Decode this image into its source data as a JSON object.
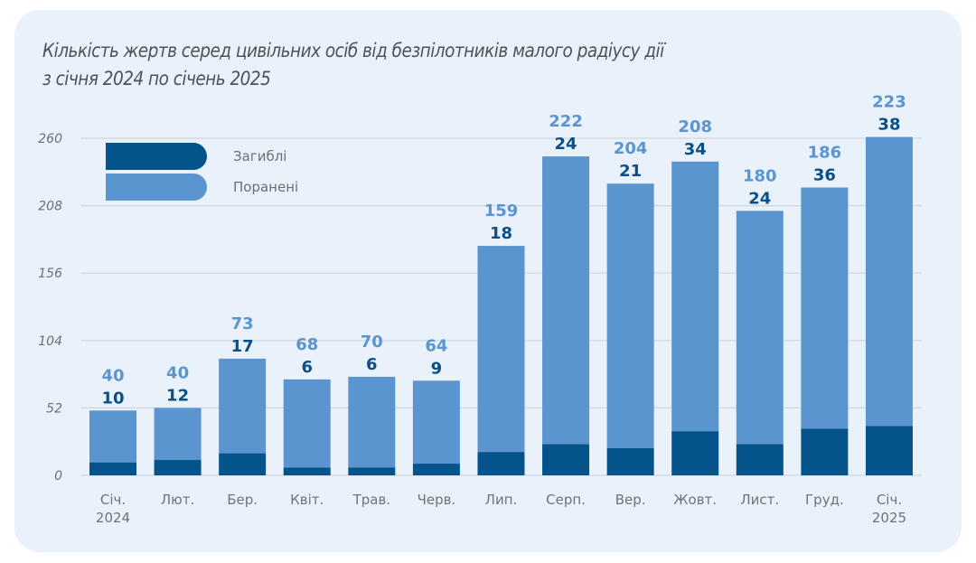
{
  "chart_data": {
    "type": "bar",
    "stacked": true,
    "title": "Кількість жертв серед цивільних осіб від безпілотників малого радіусу дії з січня 2024 по січень 2025",
    "title_lines": [
      "Кількість жертв серед цивільних осіб від безпілотників малого радіусу дії",
      "з січня 2024 по січень 2025"
    ],
    "xlabel": "",
    "ylabel": "",
    "ylim": [
      0,
      260
    ],
    "yticks": [
      0,
      52,
      104,
      156,
      208,
      260
    ],
    "grid": true,
    "legend_position": "top-left",
    "categories": [
      [
        "Січ.",
        "2024"
      ],
      [
        "Лют."
      ],
      [
        "Бер."
      ],
      [
        "Квіт."
      ],
      [
        "Трав."
      ],
      [
        "Черв."
      ],
      [
        "Лип."
      ],
      [
        "Серп."
      ],
      [
        "Вер."
      ],
      [
        "Жовт."
      ],
      [
        "Лист."
      ],
      [
        "Груд."
      ],
      [
        "Січ.",
        "2025"
      ]
    ],
    "series": [
      {
        "name": "Загиблі",
        "color": "#04538b",
        "values": [
          10,
          12,
          17,
          6,
          6,
          9,
          18,
          24,
          21,
          34,
          24,
          36,
          38
        ]
      },
      {
        "name": "Поранені",
        "color": "#5b95cf",
        "values": [
          40,
          40,
          73,
          68,
          70,
          64,
          159,
          222,
          204,
          208,
          180,
          186,
          223
        ]
      }
    ]
  },
  "colors": {
    "card_background": "#e9f1fb",
    "gridline": "#cfd6e0",
    "killed": "#04538b",
    "injured": "#5b95cf"
  }
}
